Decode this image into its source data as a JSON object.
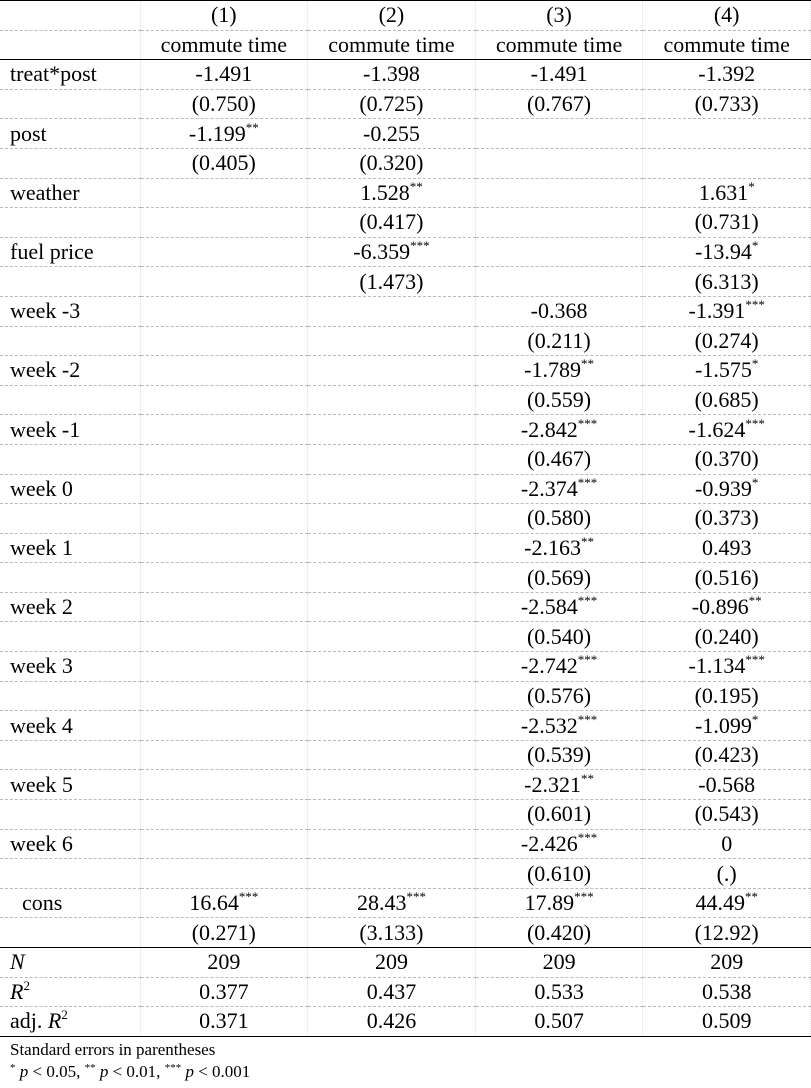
{
  "header": {
    "columns": [
      "(1)",
      "(2)",
      "(3)",
      "(4)"
    ],
    "depvar": [
      "commute time",
      "commute time",
      "commute time",
      "commute time"
    ]
  },
  "rows": [
    {
      "label": "treat*post",
      "coef": [
        {
          "v": "-1.491"
        },
        {
          "v": "-1.398"
        },
        {
          "v": "-1.491"
        },
        {
          "v": "-1.392"
        }
      ],
      "se": [
        "(0.750)",
        "(0.725)",
        "(0.767)",
        "(0.733)"
      ]
    },
    {
      "label": "post",
      "coef": [
        {
          "v": "-1.199",
          "s": "**"
        },
        {
          "v": "-0.255"
        },
        null,
        null
      ],
      "se": [
        "(0.405)",
        "(0.320)",
        null,
        null
      ]
    },
    {
      "label": "weather",
      "coef": [
        null,
        {
          "v": "1.528",
          "s": "**"
        },
        null,
        {
          "v": "1.631",
          "s": "*"
        }
      ],
      "se": [
        null,
        "(0.417)",
        null,
        "(0.731)"
      ]
    },
    {
      "label": "fuel price",
      "coef": [
        null,
        {
          "v": "-6.359",
          "s": "***"
        },
        null,
        {
          "v": "-13.94",
          "s": "*"
        }
      ],
      "se": [
        null,
        "(1.473)",
        null,
        "(6.313)"
      ]
    },
    {
      "label": "week -3",
      "coef": [
        null,
        null,
        {
          "v": "-0.368"
        },
        {
          "v": "-1.391",
          "s": "***"
        }
      ],
      "se": [
        null,
        null,
        "(0.211)",
        "(0.274)"
      ]
    },
    {
      "label": "week -2",
      "coef": [
        null,
        null,
        {
          "v": "-1.789",
          "s": "**"
        },
        {
          "v": "-1.575",
          "s": "*"
        }
      ],
      "se": [
        null,
        null,
        "(0.559)",
        "(0.685)"
      ]
    },
    {
      "label": "week -1",
      "coef": [
        null,
        null,
        {
          "v": "-2.842",
          "s": "***"
        },
        {
          "v": "-1.624",
          "s": "***"
        }
      ],
      "se": [
        null,
        null,
        "(0.467)",
        "(0.370)"
      ]
    },
    {
      "label": "week 0",
      "coef": [
        null,
        null,
        {
          "v": "-2.374",
          "s": "***"
        },
        {
          "v": "-0.939",
          "s": "*"
        }
      ],
      "se": [
        null,
        null,
        "(0.580)",
        "(0.373)"
      ]
    },
    {
      "label": "week 1",
      "coef": [
        null,
        null,
        {
          "v": "-2.163",
          "s": "**"
        },
        {
          "v": "0.493"
        }
      ],
      "se": [
        null,
        null,
        "(0.569)",
        "(0.516)"
      ]
    },
    {
      "label": "week 2",
      "coef": [
        null,
        null,
        {
          "v": "-2.584",
          "s": "***"
        },
        {
          "v": "-0.896",
          "s": "**"
        }
      ],
      "se": [
        null,
        null,
        "(0.540)",
        "(0.240)"
      ]
    },
    {
      "label": "week 3",
      "coef": [
        null,
        null,
        {
          "v": "-2.742",
          "s": "***"
        },
        {
          "v": "-1.134",
          "s": "***"
        }
      ],
      "se": [
        null,
        null,
        "(0.576)",
        "(0.195)"
      ]
    },
    {
      "label": "week 4",
      "coef": [
        null,
        null,
        {
          "v": "-2.532",
          "s": "***"
        },
        {
          "v": "-1.099",
          "s": "*"
        }
      ],
      "se": [
        null,
        null,
        "(0.539)",
        "(0.423)"
      ]
    },
    {
      "label": "week 5",
      "coef": [
        null,
        null,
        {
          "v": "-2.321",
          "s": "**"
        },
        {
          "v": "-0.568"
        }
      ],
      "se": [
        null,
        null,
        "(0.601)",
        "(0.543)"
      ]
    },
    {
      "label": "week 6",
      "coef": [
        null,
        null,
        {
          "v": "-2.426",
          "s": "***"
        },
        {
          "v": "0"
        }
      ],
      "se": [
        null,
        null,
        "(0.610)",
        "(.)"
      ]
    },
    {
      "label": "cons",
      "coef": [
        {
          "v": "16.64",
          "s": "***"
        },
        {
          "v": "28.43",
          "s": "***"
        },
        {
          "v": "17.89",
          "s": "***"
        },
        {
          "v": "44.49",
          "s": "**"
        }
      ],
      "se": [
        "(0.271)",
        "(3.133)",
        "(0.420)",
        "(12.92)"
      ]
    }
  ],
  "stats": [
    {
      "label": {
        "italic": "N"
      },
      "values": [
        "209",
        "209",
        "209",
        "209"
      ]
    },
    {
      "label": {
        "italic": "R",
        "sup": "2"
      },
      "values": [
        "0.377",
        "0.437",
        "0.533",
        "0.538"
      ]
    },
    {
      "label": {
        "plain": "adj.",
        "italic": "R",
        "sup": "2"
      },
      "values": [
        "0.371",
        "0.426",
        "0.507",
        "0.509"
      ]
    }
  ],
  "notes": {
    "line1": "Standard errors in parentheses",
    "line2": [
      {
        "sup": "*",
        "italic": "p",
        "rest": "< 0.05,"
      },
      {
        "sup": "**",
        "italic": "p",
        "rest": "< 0.01,"
      },
      {
        "sup": "***",
        "italic": "p",
        "rest": "< 0.001"
      }
    ]
  }
}
